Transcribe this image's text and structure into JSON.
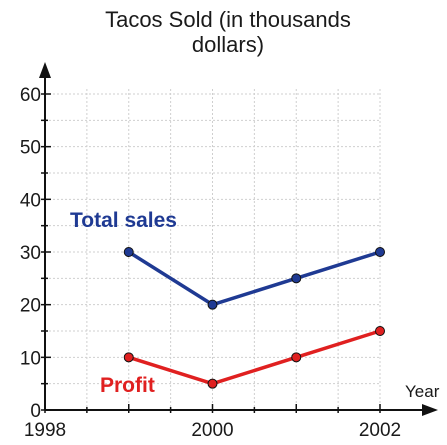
{
  "chart_data": {
    "type": "line",
    "title_line1": "Tacos Sold (in thousands",
    "title_line2": "dollars)",
    "xlabel": "Year",
    "ylabel": "",
    "xlim": [
      1998,
      2002
    ],
    "ylim": [
      0,
      60
    ],
    "x_ticks": [
      1998,
      2000,
      2002
    ],
    "y_ticks": [
      0,
      10,
      20,
      30,
      40,
      50,
      60
    ],
    "grid": true,
    "series": [
      {
        "name": "Total sales",
        "color": "#1f3a93",
        "points": [
          [
            1999,
            30
          ],
          [
            2000,
            20
          ],
          [
            2001,
            25
          ],
          [
            2002,
            30
          ]
        ]
      },
      {
        "name": "Profit",
        "color": "#e02020",
        "points": [
          [
            1999,
            10
          ],
          [
            2000,
            5
          ],
          [
            2001,
            10
          ],
          [
            2002,
            15
          ]
        ]
      }
    ]
  }
}
